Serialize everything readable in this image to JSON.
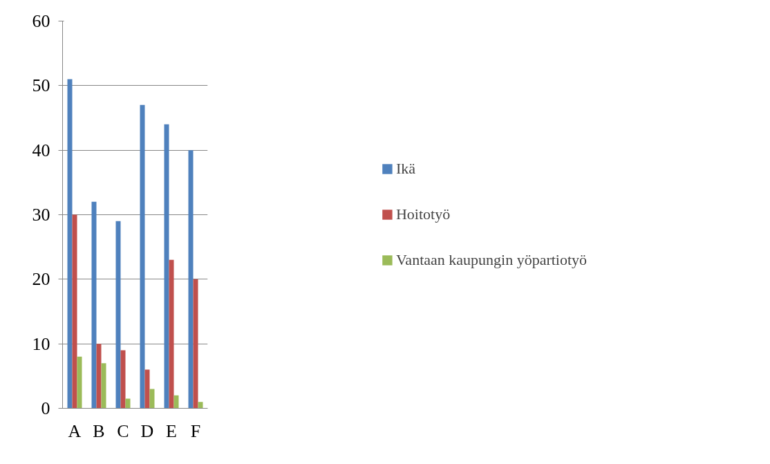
{
  "chart_data": {
    "type": "bar",
    "categories": [
      "A",
      "B",
      "C",
      "D",
      "E",
      "F"
    ],
    "series": [
      {
        "name": "Ikä",
        "color": "#4f81bd",
        "values": [
          51,
          32,
          29,
          47,
          44,
          40
        ]
      },
      {
        "name": "Hoitotyö",
        "color": "#c0504d",
        "values": [
          30,
          10,
          9,
          6,
          23,
          20
        ]
      },
      {
        "name": "Vantaan kaupungin yöpartiotyö",
        "color": "#9bbb59",
        "values": [
          8,
          7,
          1.5,
          3,
          2,
          1
        ]
      }
    ],
    "ylim": [
      0,
      60
    ],
    "yticks": [
      0,
      10,
      20,
      30,
      40,
      50,
      60
    ],
    "grid": "y",
    "legend": "right"
  }
}
